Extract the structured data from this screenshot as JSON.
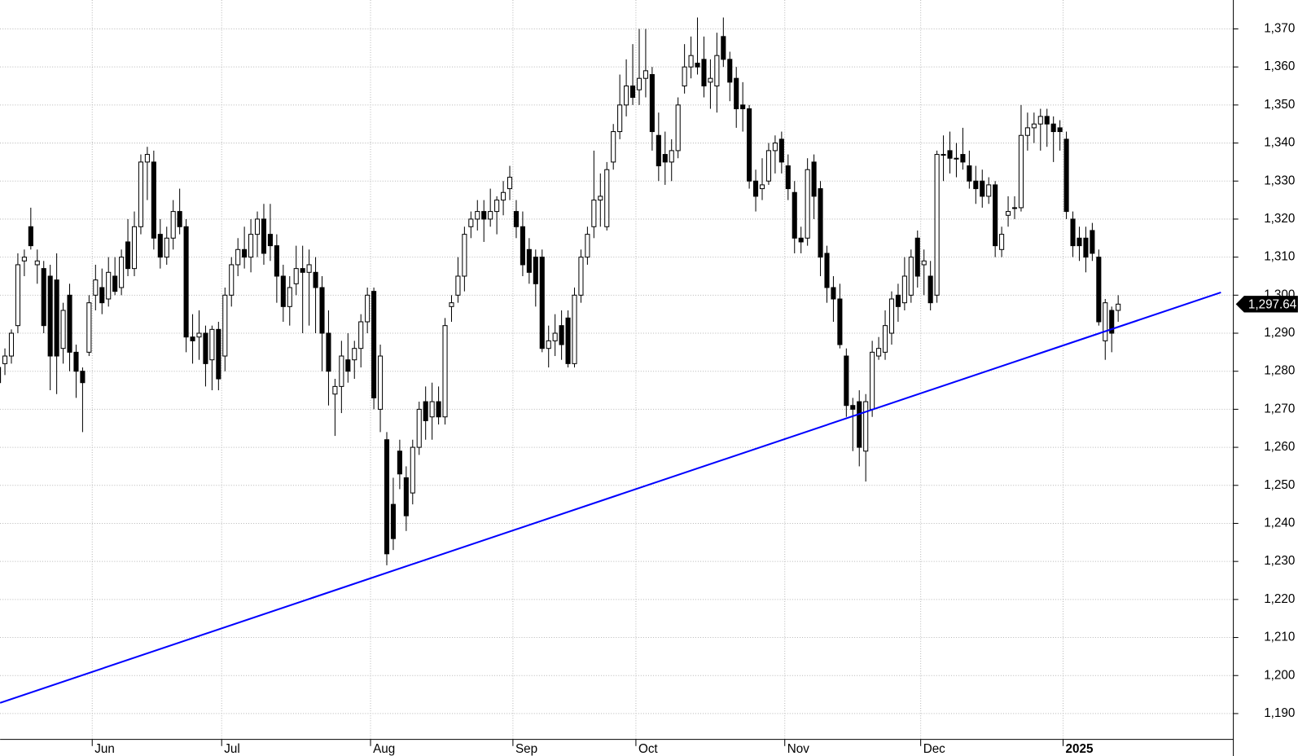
{
  "chart_data": {
    "type": "candlestick",
    "categories": [
      null,
      null,
      null,
      null,
      null,
      null,
      null,
      null,
      null,
      null,
      null,
      null,
      null,
      null,
      null,
      "Jun",
      null,
      null,
      null,
      null,
      null,
      null,
      null,
      null,
      null,
      null,
      null,
      null,
      null,
      null,
      null,
      null,
      null,
      null,
      null,
      "Jul",
      null,
      null,
      null,
      null,
      null,
      null,
      null,
      null,
      null,
      null,
      null,
      null,
      null,
      null,
      null,
      null,
      null,
      null,
      null,
      null,
      null,
      null,
      "Aug",
      null,
      null,
      null,
      null,
      null,
      null,
      null,
      null,
      null,
      null,
      null,
      null,
      null,
      null,
      null,
      null,
      null,
      null,
      null,
      null,
      null,
      "Sep",
      null,
      null,
      null,
      null,
      null,
      null,
      null,
      null,
      null,
      null,
      null,
      null,
      null,
      null,
      null,
      null,
      null,
      null,
      "Oct",
      null,
      null,
      null,
      null,
      null,
      null,
      null,
      null,
      null,
      null,
      null,
      null,
      null,
      null,
      null,
      null,
      null,
      null,
      null,
      null,
      null,
      null,
      "Nov",
      null,
      null,
      null,
      null,
      null,
      null,
      null,
      null,
      null,
      null,
      null,
      null,
      null,
      null,
      null,
      null,
      null,
      null,
      null,
      null,
      "Dec",
      null,
      null,
      null,
      null,
      null,
      null,
      null,
      null,
      null,
      null,
      null,
      null,
      null,
      null,
      null,
      null,
      null,
      null,
      null,
      null,
      null,
      "2025",
      null,
      null,
      null,
      null,
      null,
      null,
      null,
      null
    ],
    "open": [
      1281,
      1282,
      1284,
      1292,
      1309,
      1318,
      1308,
      1307,
      1305,
      1304,
      1286,
      1300,
      1285,
      1280,
      1285,
      1300,
      1302,
      1299,
      1305,
      1302,
      1314,
      1307,
      1318,
      1335,
      1335,
      1316,
      1310,
      1315,
      1322,
      1318,
      1289,
      1289,
      1290,
      1283,
      1291,
      1284,
      1300,
      1308,
      1312,
      1310,
      1316,
      1320,
      1316,
      1313,
      1305,
      1297,
      1303,
      1307,
      1306,
      1306,
      1302,
      1290,
      1274,
      1276,
      1283,
      1283,
      1286,
      1293,
      1301,
      1270,
      1262,
      1245,
      1259,
      1252,
      1248,
      1260,
      1272,
      1268,
      1272,
      1268,
      1297,
      1300,
      1305,
      1318,
      1320,
      1322,
      1320,
      1322,
      1325,
      1328,
      1322,
      1318,
      1312,
      1310,
      1310,
      1286,
      1288,
      1292,
      1294,
      1282,
      1300,
      1310,
      1318,
      1325,
      1318,
      1335,
      1343,
      1350,
      1355,
      1354,
      1357,
      1358,
      1342,
      1337,
      1335,
      1338,
      1355,
      1360,
      1361,
      1362,
      1356,
      1355,
      1368,
      1362,
      1357,
      1350,
      1349,
      1330,
      1328,
      1330,
      1338,
      1341,
      1334,
      1327,
      1315,
      1315,
      1335,
      1328,
      1311,
      1302,
      1299,
      1284,
      1271,
      1272,
      1259,
      1270,
      1284,
      1285,
      1290,
      1300,
      1298,
      1300,
      1315,
      1308,
      1305,
      1300,
      1337,
      1338,
      1336,
      1337,
      1334,
      1330,
      1330,
      1326,
      1329,
      1312,
      1321,
      1323,
      1323,
      1342,
      1344,
      1345,
      1347,
      1345,
      1344,
      1341,
      1320,
      1315,
      1315,
      1317,
      1310,
      1288,
      1296,
      1296
    ],
    "high": [
      1284,
      1286,
      1291,
      1311,
      1312,
      1323,
      1312,
      1309,
      1308,
      1311,
      1298,
      1303,
      1287,
      1281,
      1300,
      1308,
      1307,
      1310,
      1310,
      1312,
      1320,
      1322,
      1337,
      1339,
      1338,
      1320,
      1318,
      1325,
      1328,
      1320,
      1295,
      1296,
      1292,
      1292,
      1293,
      1302,
      1310,
      1315,
      1318,
      1320,
      1322,
      1324,
      1324,
      1316,
      1308,
      1305,
      1313,
      1313,
      1312,
      1310,
      1305,
      1296,
      1278,
      1288,
      1290,
      1288,
      1295,
      1302,
      1302,
      1287,
      1264,
      1252,
      1262,
      1255,
      1262,
      1272,
      1276,
      1277,
      1276,
      1294,
      1300,
      1310,
      1318,
      1322,
      1325,
      1325,
      1328,
      1326,
      1330,
      1334,
      1325,
      1322,
      1315,
      1312,
      1312,
      1292,
      1295,
      1296,
      1296,
      1302,
      1312,
      1318,
      1338,
      1332,
      1335,
      1345,
      1358,
      1362,
      1366,
      1370,
      1370,
      1360,
      1348,
      1343,
      1341,
      1352,
      1366,
      1368,
      1373,
      1368,
      1362,
      1369,
      1373,
      1364,
      1360,
      1356,
      1350,
      1333,
      1336,
      1340,
      1342,
      1343,
      1337,
      1330,
      1318,
      1336,
      1337,
      1330,
      1313,
      1305,
      1303,
      1286,
      1273,
      1275,
      1274,
      1288,
      1289,
      1296,
      1301,
      1303,
      1310,
      1312,
      1317,
      1312,
      1309,
      1338,
      1342,
      1343,
      1340,
      1344,
      1338,
      1334,
      1333,
      1331,
      1330,
      1318,
      1326,
      1326,
      1350,
      1348,
      1348,
      1349,
      1349,
      1347,
      1346,
      1343,
      1322,
      1318,
      1318,
      1319,
      1312,
      1299,
      1297,
      1300
    ],
    "low": [
      1275,
      1279,
      1282,
      1290,
      1305,
      1312,
      1303,
      1290,
      1275,
      1274,
      1282,
      1280,
      1273,
      1264,
      1284,
      1296,
      1295,
      1297,
      1300,
      1300,
      1305,
      1305,
      1316,
      1325,
      1312,
      1307,
      1308,
      1312,
      1316,
      1285,
      1282,
      1283,
      1276,
      1275,
      1275,
      1280,
      1297,
      1305,
      1307,
      1306,
      1310,
      1308,
      1309,
      1298,
      1293,
      1292,
      1300,
      1290,
      1292,
      1290,
      1280,
      1271,
      1263,
      1269,
      1277,
      1278,
      1281,
      1290,
      1270,
      1264,
      1229,
      1233,
      1249,
      1238,
      1245,
      1258,
      1262,
      1262,
      1266,
      1266,
      1293,
      1298,
      1301,
      1315,
      1317,
      1314,
      1318,
      1316,
      1321,
      1325,
      1315,
      1305,
      1303,
      1297,
      1285,
      1281,
      1284,
      1283,
      1281,
      1281,
      1298,
      1308,
      1315,
      1318,
      1317,
      1333,
      1341,
      1347,
      1350,
      1350,
      1352,
      1338,
      1330,
      1329,
      1330,
      1336,
      1353,
      1357,
      1358,
      1352,
      1349,
      1348,
      1360,
      1351,
      1344,
      1343,
      1328,
      1322,
      1325,
      1329,
      1332,
      1332,
      1325,
      1311,
      1311,
      1313,
      1320,
      1305,
      1298,
      1293,
      1286,
      1268,
      1259,
      1255,
      1251,
      1268,
      1283,
      1283,
      1287,
      1293,
      1296,
      1298,
      1302,
      1300,
      1296,
      1298,
      1330,
      1332,
      1331,
      1333,
      1328,
      1324,
      1323,
      1324,
      1310,
      1310,
      1318,
      1320,
      1322,
      1338,
      1340,
      1338,
      1339,
      1335,
      1338,
      1320,
      1310,
      1309,
      1306,
      1309,
      1292,
      1283,
      1285,
      1293
    ],
    "close": [
      1277,
      1284,
      1290,
      1308,
      1310,
      1313,
      1309,
      1292,
      1284,
      1284,
      1296,
      1285,
      1280,
      1277,
      1298,
      1304,
      1298,
      1306,
      1301,
      1310,
      1307,
      1318,
      1335,
      1337,
      1315,
      1310,
      1315,
      1322,
      1318,
      1289,
      1288,
      1290,
      1282,
      1291,
      1278,
      1300,
      1308,
      1312,
      1310,
      1316,
      1320,
      1311,
      1313,
      1305,
      1297,
      1302,
      1307,
      1306,
      1308,
      1302,
      1290,
      1280,
      1276,
      1284,
      1280,
      1286,
      1293,
      1300,
      1273,
      1284,
      1232,
      1236,
      1253,
      1242,
      1260,
      1270,
      1267,
      1272,
      1268,
      1292,
      1298,
      1305,
      1316,
      1320,
      1322,
      1320,
      1322,
      1325,
      1327,
      1331,
      1318,
      1308,
      1306,
      1303,
      1286,
      1288,
      1290,
      1287,
      1282,
      1300,
      1310,
      1316,
      1325,
      1326,
      1333,
      1343,
      1350,
      1355,
      1352,
      1357,
      1359,
      1343,
      1334,
      1335,
      1338,
      1350,
      1360,
      1363,
      1360,
      1355,
      1357,
      1363,
      1362,
      1356,
      1349,
      1349,
      1330,
      1326,
      1329,
      1338,
      1340,
      1335,
      1328,
      1315,
      1314,
      1333,
      1326,
      1310,
      1302,
      1299,
      1287,
      1271,
      1270,
      1260,
      1272,
      1285,
      1286,
      1292,
      1299,
      1297,
      1305,
      1310,
      1305,
      1309,
      1298,
      1337,
      1337,
      1336,
      1336,
      1335,
      1330,
      1328,
      1326,
      1329,
      1313,
      1316,
      1322,
      1323,
      1342,
      1344,
      1345,
      1347,
      1345,
      1343,
      1343,
      1322,
      1313,
      1313,
      1310,
      1311,
      1293,
      1298,
      1290,
      1297.64
    ],
    "last_label": "1,297.64",
    "up_color": "#ffffff",
    "down_color": "#000000",
    "ylim": [
      1183.2,
      1377.6
    ],
    "yticks": [
      {
        "value": 1190,
        "label": "1,190"
      },
      {
        "value": 1200,
        "label": "1,200"
      },
      {
        "value": 1210,
        "label": "1,210"
      },
      {
        "value": 1220,
        "label": "1,220"
      },
      {
        "value": 1230,
        "label": "1,230"
      },
      {
        "value": 1240,
        "label": "1,240"
      },
      {
        "value": 1250,
        "label": "1,250"
      },
      {
        "value": 1260,
        "label": "1,260"
      },
      {
        "value": 1270,
        "label": "1,270"
      },
      {
        "value": 1280,
        "label": "1,280"
      },
      {
        "value": 1290,
        "label": "1,290"
      },
      {
        "value": 1300,
        "label": "1,300"
      },
      {
        "value": 1310,
        "label": "1,310"
      },
      {
        "value": 1320,
        "label": "1,320"
      },
      {
        "value": 1330,
        "label": "1,330"
      },
      {
        "value": 1340,
        "label": "1,340"
      },
      {
        "value": 1350,
        "label": "1,350"
      },
      {
        "value": 1360,
        "label": "1,360"
      },
      {
        "value": 1370,
        "label": "1,370"
      }
    ],
    "grid": true,
    "trendline": {
      "x": [
        60,
        171
      ],
      "y": [
        1227,
        1290.5
      ],
      "color": "#0000ff"
    }
  }
}
